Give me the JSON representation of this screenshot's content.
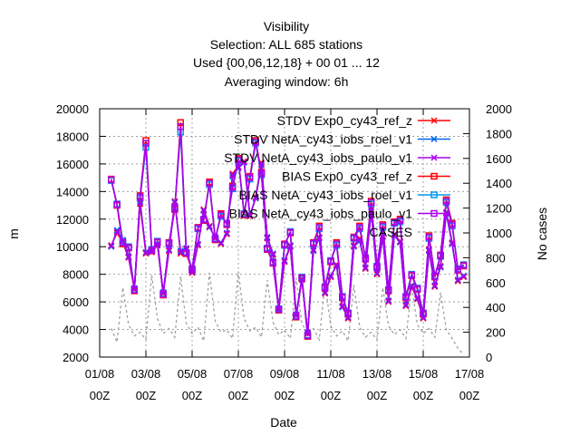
{
  "chart_data": {
    "type": "line",
    "title_lines": [
      "Visibility",
      "Selection: ALL    685 stations",
      "Used {00,06,12,18} + 00 01 ... 12",
      "Averaging window:  6h"
    ],
    "xlabel": "Date",
    "ylabel": "m",
    "y2label": "No cases",
    "xlim": [
      0,
      64
    ],
    "ylim": [
      2000,
      20000
    ],
    "y2lim": [
      0,
      2000
    ],
    "yticks": [
      2000,
      4000,
      6000,
      8000,
      10000,
      12000,
      14000,
      16000,
      18000,
      20000
    ],
    "y2ticks": [
      0,
      200,
      400,
      600,
      800,
      1000,
      1200,
      1400,
      1600,
      1800,
      2000
    ],
    "xticks": [
      {
        "x": 0,
        "label": "01/08",
        "sub": "00Z"
      },
      {
        "x": 8,
        "label": "03/08",
        "sub": "00Z"
      },
      {
        "x": 16,
        "label": "05/08",
        "sub": "00Z"
      },
      {
        "x": 24,
        "label": "07/08",
        "sub": "00Z"
      },
      {
        "x": 32,
        "label": "09/08",
        "sub": "00Z"
      },
      {
        "x": 40,
        "label": "11/08",
        "sub": "00Z"
      },
      {
        "x": 48,
        "label": "13/08",
        "sub": "00Z"
      },
      {
        "x": 56,
        "label": "15/08",
        "sub": "00Z"
      },
      {
        "x": 64,
        "label": "17/08",
        "sub": "00Z"
      }
    ],
    "legend_position": "top-right",
    "grid": true,
    "series": [
      {
        "name": "STDV Exp0_cy43_ref_z",
        "color": "#ff0000",
        "marker": "x",
        "axis": "y",
        "x": [
          2,
          3,
          4,
          5,
          6,
          7,
          8,
          9,
          10,
          11,
          12,
          13,
          14,
          15,
          16,
          17,
          18,
          19,
          20,
          21,
          22,
          23,
          24,
          25,
          26,
          27,
          28,
          29,
          30,
          31,
          32,
          33,
          34,
          35,
          36,
          37,
          38,
          39,
          40,
          41,
          42,
          43,
          44,
          45,
          46,
          47,
          48,
          49,
          50,
          51,
          52,
          53,
          54,
          55,
          56,
          57,
          58,
          59,
          60,
          61,
          62,
          63
        ],
        "values": [
          10100,
          11000,
          10300,
          9200,
          6900,
          13100,
          9500,
          9600,
          10100,
          6600,
          9700,
          13300,
          9500,
          9800,
          8100,
          10100,
          12700,
          11500,
          10600,
          10200,
          10900,
          15300,
          15800,
          16200,
          12200,
          13600,
          16100,
          10600,
          9400,
          5400,
          8900,
          10000,
          5000,
          7600,
          3700,
          9800,
          10700,
          6600,
          7800,
          8700,
          5700,
          4800,
          10100,
          10600,
          8400,
          12700,
          8000,
          10800,
          6000,
          10900,
          10400,
          5700,
          7100,
          6200,
          4800,
          9800,
          7100,
          8600,
          12500,
          10300,
          7500,
          7800
        ]
      },
      {
        "name": "STDV NetA_cy43_iobs_roel_v1",
        "color": "#0066ee",
        "marker": "x",
        "axis": "y",
        "x": [
          2,
          3,
          4,
          5,
          6,
          7,
          8,
          9,
          10,
          11,
          12,
          13,
          14,
          15,
          16,
          17,
          18,
          19,
          20,
          21,
          22,
          23,
          24,
          25,
          26,
          27,
          28,
          29,
          30,
          31,
          32,
          33,
          34,
          35,
          36,
          37,
          38,
          39,
          40,
          41,
          42,
          43,
          44,
          45,
          46,
          47,
          48,
          49,
          50,
          51,
          52,
          53,
          54,
          55,
          56,
          57,
          58,
          59,
          60,
          61,
          62,
          63
        ],
        "values": [
          10000,
          11200,
          10500,
          9300,
          7000,
          13300,
          9600,
          9700,
          10200,
          6700,
          9800,
          13200,
          9700,
          9900,
          8200,
          10200,
          12600,
          11400,
          10700,
          10300,
          11000,
          15100,
          15700,
          16100,
          12300,
          13500,
          15900,
          10700,
          9500,
          5500,
          9000,
          10100,
          5100,
          7700,
          3800,
          9700,
          10600,
          6700,
          7900,
          8600,
          5600,
          4900,
          10000,
          10400,
          8500,
          12500,
          8100,
          10700,
          6100,
          10800,
          10300,
          5800,
          7200,
          6300,
          4900,
          9700,
          7200,
          8500,
          12400,
          10200,
          7600,
          7900
        ]
      },
      {
        "name": "STDV NetA_cy43_iobs_paulo_v1",
        "color": "#aa00ee",
        "marker": "x",
        "axis": "y",
        "x": [
          2,
          3,
          4,
          5,
          6,
          7,
          8,
          9,
          10,
          11,
          12,
          13,
          14,
          15,
          16,
          17,
          18,
          19,
          20,
          21,
          22,
          23,
          24,
          25,
          26,
          27,
          28,
          29,
          30,
          31,
          32,
          33,
          34,
          35,
          36,
          37,
          38,
          39,
          40,
          41,
          42,
          43,
          44,
          45,
          46,
          47,
          48,
          49,
          50,
          51,
          52,
          53,
          54,
          55,
          56,
          57,
          58,
          59,
          60,
          61,
          62,
          63
        ],
        "values": [
          10050,
          11100,
          10400,
          9250,
          6950,
          13200,
          9550,
          9650,
          10150,
          6650,
          9750,
          13250,
          9600,
          9850,
          8150,
          10150,
          12650,
          11450,
          10650,
          10250,
          10950,
          15200,
          15750,
          16150,
          12250,
          13550,
          16000,
          10650,
          9450,
          5450,
          8950,
          10050,
          5050,
          7650,
          3750,
          9750,
          10650,
          6650,
          7850,
          8650,
          5650,
          4850,
          10050,
          10500,
          8450,
          12600,
          8050,
          10750,
          6050,
          10850,
          10350,
          5750,
          7150,
          6250,
          4850,
          9750,
          7150,
          8550,
          12450,
          10250,
          7550,
          7850
        ]
      },
      {
        "name": "BIAS Exp0_cy43_ref_z",
        "color": "#ff0000",
        "marker": "square",
        "axis": "y",
        "x": [
          2,
          3,
          4,
          5,
          6,
          7,
          8,
          9,
          10,
          11,
          12,
          13,
          14,
          15,
          16,
          17,
          18,
          19,
          20,
          21,
          22,
          23,
          24,
          25,
          26,
          27,
          28,
          29,
          30,
          31,
          32,
          33,
          34,
          35,
          36,
          37,
          38,
          39,
          40,
          41,
          42,
          43,
          44,
          45,
          46,
          47,
          48,
          49,
          50,
          51,
          52,
          53,
          54,
          55,
          56,
          57,
          58,
          59,
          60,
          61,
          62,
          63
        ],
        "values": [
          14900,
          13000,
          10200,
          9900,
          6800,
          13700,
          17700,
          9700,
          10300,
          6500,
          10300,
          12700,
          19000,
          9500,
          8300,
          11400,
          11900,
          14700,
          10500,
          12400,
          11600,
          14400,
          16400,
          12300,
          15100,
          17700,
          15400,
          9800,
          8800,
          5400,
          10200,
          11000,
          4900,
          7700,
          3500,
          10300,
          11500,
          7000,
          8900,
          10300,
          6300,
          5100,
          10700,
          11500,
          9100,
          13300,
          8500,
          11600,
          6800,
          11800,
          12000,
          6300,
          7900,
          6900,
          5100,
          10800,
          7800,
          9400,
          13400,
          11700,
          8300,
          8600
        ]
      },
      {
        "name": "BIAS NetA_cy43_iobs_roel_v1",
        "color": "#0099ee",
        "marker": "square",
        "axis": "y",
        "x": [
          2,
          3,
          4,
          5,
          6,
          7,
          8,
          9,
          10,
          11,
          12,
          13,
          14,
          15,
          16,
          17,
          18,
          19,
          20,
          21,
          22,
          23,
          24,
          25,
          26,
          27,
          28,
          29,
          30,
          31,
          32,
          33,
          34,
          35,
          36,
          37,
          38,
          39,
          40,
          41,
          42,
          43,
          44,
          45,
          46,
          47,
          48,
          49,
          50,
          51,
          52,
          53,
          54,
          55,
          56,
          57,
          58,
          59,
          60,
          61,
          62,
          63
        ],
        "values": [
          14800,
          13100,
          10400,
          10000,
          6900,
          13500,
          17200,
          9800,
          10400,
          6600,
          10200,
          12900,
          18300,
          9600,
          8400,
          11300,
          12000,
          14500,
          10600,
          12200,
          11700,
          14200,
          16200,
          12400,
          14900,
          17500,
          15200,
          9900,
          8900,
          5500,
          10100,
          11100,
          5000,
          7800,
          3600,
          10200,
          11300,
          7100,
          9000,
          10100,
          6400,
          5200,
          10600,
          11300,
          9200,
          13100,
          8600,
          11400,
          6900,
          11700,
          11800,
          6400,
          8000,
          7000,
          5200,
          10600,
          7900,
          9300,
          13200,
          11500,
          8400,
          8700
        ]
      },
      {
        "name": "BIAS NetA_cy43_iobs_paulo_v1",
        "color": "#aa00ee",
        "marker": "square",
        "axis": "y",
        "x": [
          2,
          3,
          4,
          5,
          6,
          7,
          8,
          9,
          10,
          11,
          12,
          13,
          14,
          15,
          16,
          17,
          18,
          19,
          20,
          21,
          22,
          23,
          24,
          25,
          26,
          27,
          28,
          29,
          30,
          31,
          32,
          33,
          34,
          35,
          36,
          37,
          38,
          39,
          40,
          41,
          42,
          43,
          44,
          45,
          46,
          47,
          48,
          49,
          50,
          51,
          52,
          53,
          54,
          55,
          56,
          57,
          58,
          59,
          60,
          61,
          62,
          63
        ],
        "values": [
          14850,
          13050,
          10300,
          9950,
          6850,
          13600,
          17500,
          9750,
          10350,
          6550,
          10250,
          12800,
          18700,
          9550,
          8350,
          11350,
          11950,
          14600,
          10550,
          12300,
          11650,
          14300,
          16300,
          12350,
          15000,
          17600,
          15300,
          9850,
          8850,
          5450,
          10150,
          11050,
          4950,
          7750,
          3550,
          10250,
          11400,
          7050,
          8950,
          10200,
          6350,
          5150,
          10650,
          11400,
          9150,
          13200,
          8550,
          11500,
          6850,
          11750,
          11900,
          6350,
          7950,
          6950,
          5150,
          10700,
          7850,
          9350,
          13300,
          11600,
          8350,
          8650
        ]
      },
      {
        "name": "CASES",
        "color": "#a0a0a0",
        "marker": "none",
        "dash": true,
        "axis": "y2",
        "x": [
          2,
          3,
          4,
          5,
          6,
          7,
          8,
          9,
          10,
          11,
          12,
          13,
          14,
          15,
          16,
          17,
          18,
          19,
          20,
          21,
          22,
          23,
          24,
          25,
          26,
          27,
          28,
          29,
          30,
          31,
          32,
          33,
          34,
          35,
          36,
          37,
          38,
          39,
          40,
          41,
          42,
          43,
          44,
          45,
          46,
          47,
          48,
          49,
          50,
          51,
          52,
          53,
          54,
          55,
          56,
          57,
          58,
          59,
          60,
          61,
          62,
          63
        ],
        "values": [
          230,
          120,
          560,
          260,
          170,
          200,
          140,
          660,
          310,
          190,
          230,
          160,
          650,
          270,
          190,
          240,
          130,
          680,
          290,
          200,
          220,
          150,
          690,
          310,
          210,
          240,
          160,
          620,
          280,
          180,
          220,
          150,
          640,
          270,
          190,
          230,
          140,
          600,
          250,
          170,
          210,
          130,
          580,
          240,
          160,
          200,
          140,
          560,
          250,
          180,
          220,
          150,
          570,
          260,
          190,
          230,
          160,
          520,
          220,
          150,
          70,
          20
        ]
      }
    ]
  }
}
